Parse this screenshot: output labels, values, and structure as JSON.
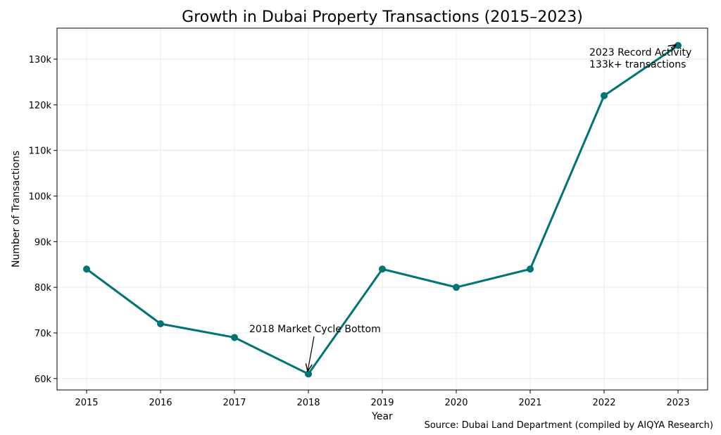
{
  "chart_data": {
    "type": "line",
    "title": "Growth in Dubai Property Transactions (2015–2023)",
    "xlabel": "Year",
    "ylabel": "Number of Transactions",
    "x": [
      2015,
      2016,
      2017,
      2018,
      2019,
      2020,
      2021,
      2022,
      2023
    ],
    "series": [
      {
        "values": [
          84000,
          72000,
          69000,
          61000,
          84000,
          80000,
          84000,
          122000,
          133000
        ],
        "color": "#007373",
        "marker": "circle"
      }
    ],
    "xticks": [
      "2015",
      "2016",
      "2017",
      "2018",
      "2019",
      "2020",
      "2021",
      "2022",
      "2023"
    ],
    "yticks": [
      60000,
      70000,
      80000,
      90000,
      100000,
      110000,
      120000,
      130000
    ],
    "ytick_labels": [
      "60k",
      "70k",
      "80k",
      "90k",
      "100k",
      "110k",
      "120k",
      "130k"
    ],
    "xlim": [
      2014.6,
      2023.4
    ],
    "ylim": [
      57500,
      136800
    ],
    "grid": true,
    "annotations": [
      {
        "text": "2018 Market Cycle Bottom",
        "x": 2018,
        "y": 61000
      },
      {
        "text": "2023 Record Activity\n133k+ transactions",
        "line1": "2023 Record Activity",
        "line2": "133k+ transactions",
        "x": 2023,
        "y": 133000
      }
    ],
    "source": "Source: Dubai Land Department (compiled by AIQYA Research)"
  }
}
